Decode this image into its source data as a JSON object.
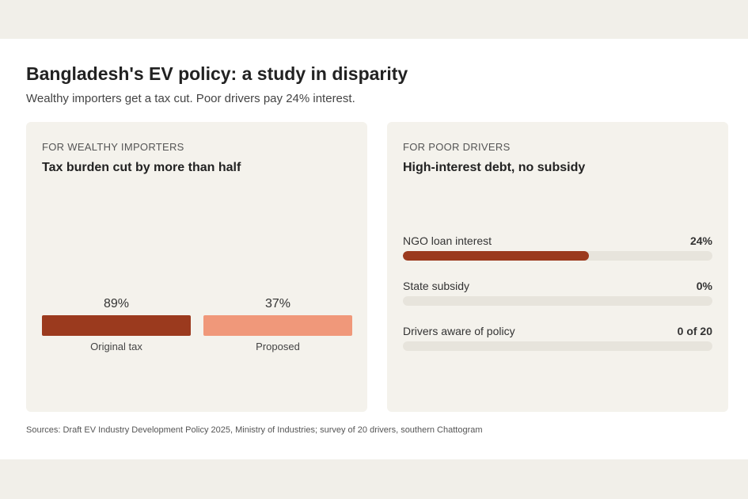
{
  "header": {
    "title": "Bangladesh's EV policy: a study in disparity",
    "subtitle": "Wealthy importers get a tax cut. Poor drivers pay 24% interest."
  },
  "left_panel": {
    "kicker": "FOR WEALTHY IMPORTERS",
    "title": "Tax burden cut by more than half"
  },
  "right_panel": {
    "kicker": "FOR POOR DRIVERS",
    "title": "High-interest debt, no subsidy"
  },
  "source": "Sources: Draft EV Industry Development Policy 2025, Ministry of Industries; survey of 20 drivers, southern Chattogram",
  "colors": {
    "accent_dark": "#9b3a1e",
    "accent_light": "#f0987a",
    "track": "#e7e4dc"
  },
  "chart_data": [
    {
      "type": "bar",
      "categories": [
        "Original tax",
        "Proposed"
      ],
      "values": [
        89,
        37
      ],
      "data_labels": [
        "89%",
        "37%"
      ],
      "colors": [
        "#9b3a1e",
        "#f0987a"
      ],
      "unit": "%"
    },
    {
      "type": "bar",
      "orientation": "horizontal",
      "items": [
        {
          "label": "NGO loan interest",
          "display": "24%",
          "fraction": 0.6,
          "color": "#9b3a1e"
        },
        {
          "label": "State subsidy",
          "display": "0%",
          "fraction": 0,
          "color": "#9b3a1e"
        },
        {
          "label": "Drivers aware of policy",
          "display": "0 of 20",
          "fraction": 0,
          "color": "#9b3a1e"
        }
      ]
    }
  ]
}
